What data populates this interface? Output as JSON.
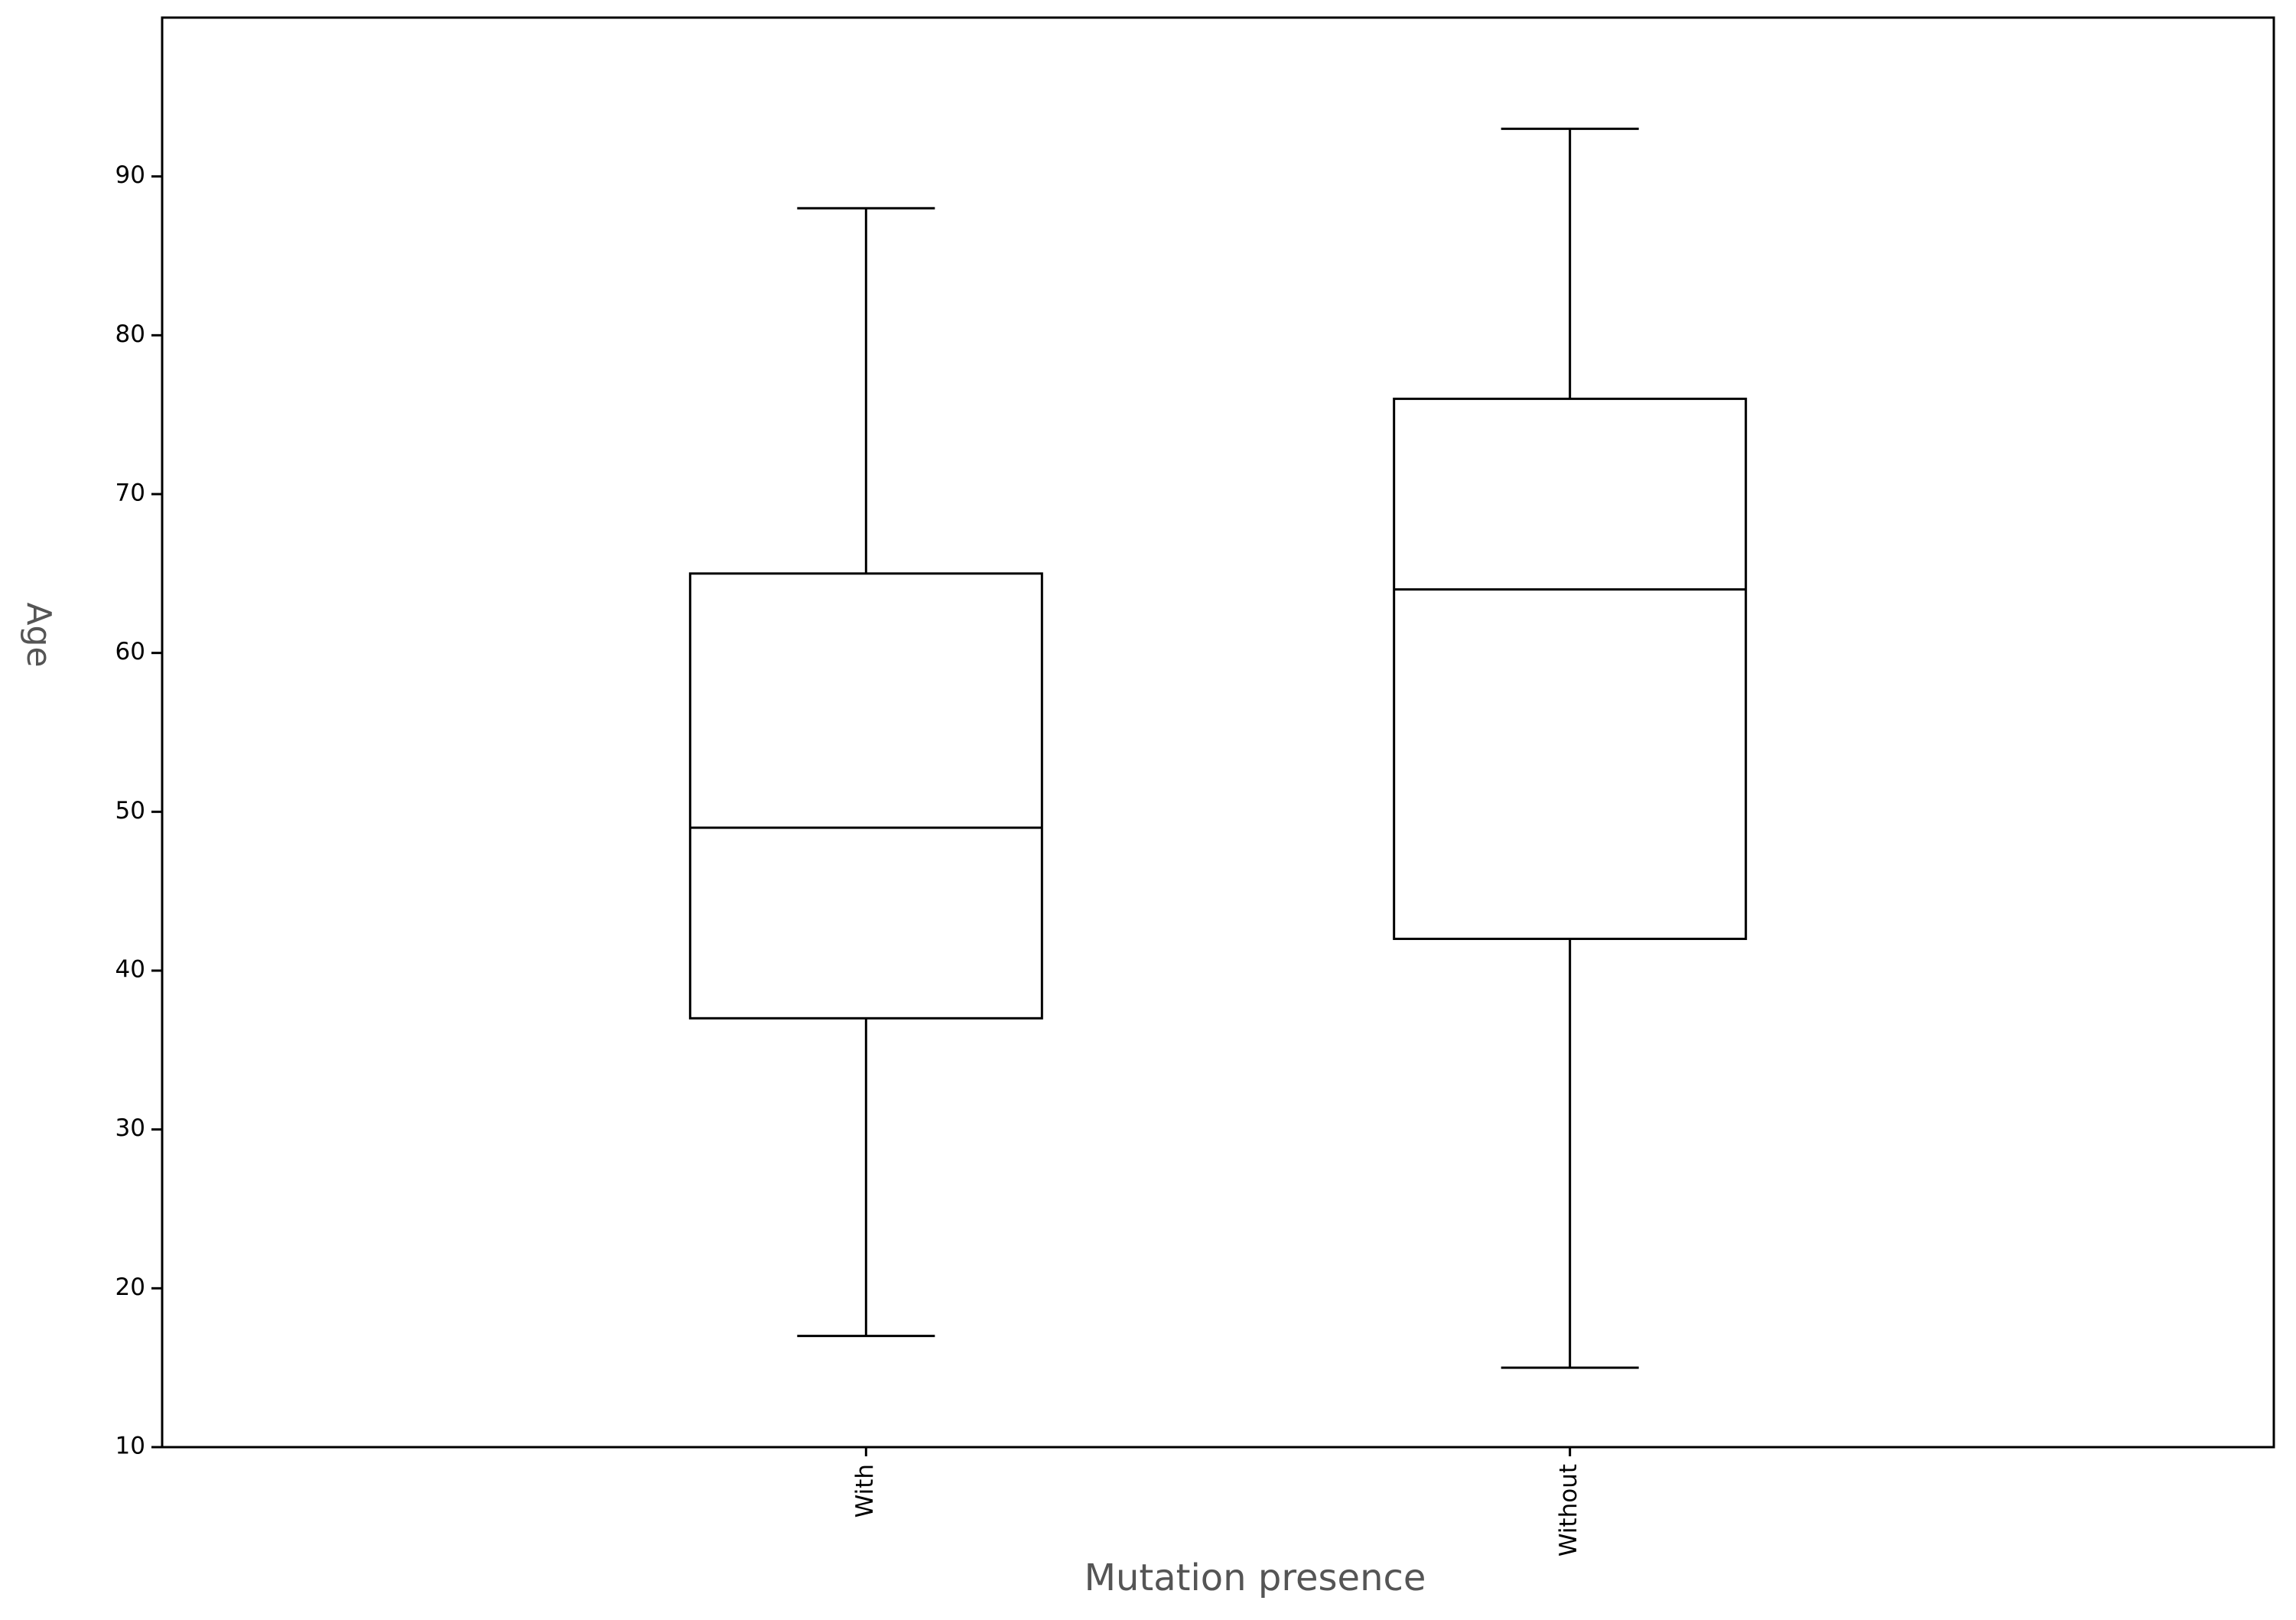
{
  "chart_data": {
    "type": "box",
    "x_label": "Mutation presence",
    "y_label": "Age",
    "categories": [
      "With",
      "Without"
    ],
    "min": [
      17,
      15
    ],
    "q1": [
      37,
      42
    ],
    "median": [
      49,
      64
    ],
    "q3": [
      65,
      76
    ],
    "max": [
      88,
      93
    ],
    "color": "#000000",
    "ylim": [
      10,
      100
    ],
    "yticks": [
      10,
      20,
      30,
      40,
      50,
      60,
      70,
      80,
      90
    ]
  }
}
